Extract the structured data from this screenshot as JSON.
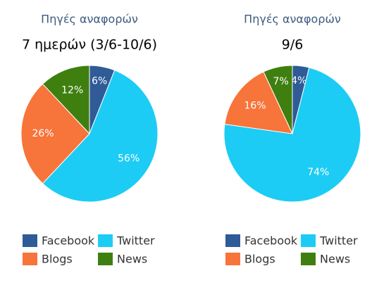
{
  "chart_data": [
    {
      "type": "pie",
      "title": "Πηγές αναφορών",
      "subtitle": "7 ημερών (3/6-10/6)",
      "categories": [
        "Facebook",
        "Twitter",
        "Blogs",
        "News"
      ],
      "values": [
        6,
        56,
        26,
        12
      ],
      "value_labels": [
        "6%",
        "56%",
        "26%",
        "12%"
      ],
      "colors": [
        "#2f5b97",
        "#1cccf4",
        "#f7743a",
        "#3f7f10"
      ]
    },
    {
      "type": "pie",
      "title": "Πηγές αναφορών",
      "subtitle": "9/6",
      "categories": [
        "Facebook",
        "Twitter",
        "Blogs",
        "News"
      ],
      "values": [
        4,
        74,
        16,
        7
      ],
      "value_labels": [
        "4%",
        "74%",
        "16%",
        "7%"
      ],
      "colors": [
        "#2f5b97",
        "#1cccf4",
        "#f7743a",
        "#3f7f10"
      ]
    }
  ]
}
